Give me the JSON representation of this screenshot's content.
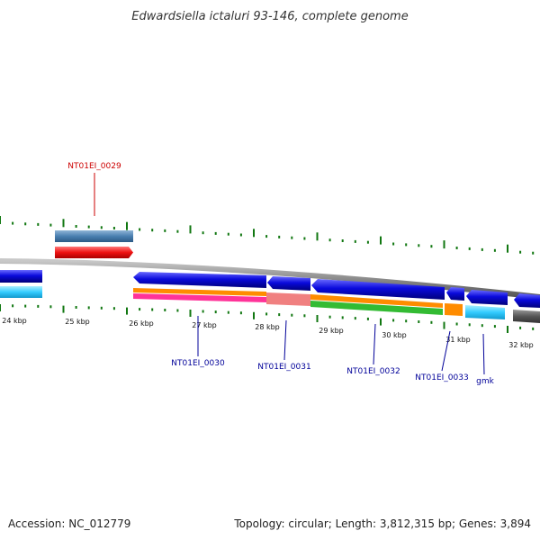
{
  "title": "Edwardsiella ictaluri 93-146, complete genome",
  "footer": {
    "accession": "Accession: NC_012779",
    "info": "Topology: circular; Length: 3,812,315 bp; Genes: 3,894"
  },
  "kbp_labels": [
    "24 kbp",
    "25 kbp",
    "26 kbp",
    "27 kbp",
    "28 kbp",
    "29 kbp",
    "30 kbp",
    "31 kbp",
    "32 kbp"
  ],
  "gene_labels": [
    {
      "id": "top",
      "text": "NT01EI_0029"
    },
    {
      "id": "a",
      "text": "NT01EI_0030"
    },
    {
      "id": "b",
      "text": "NT01EI_0031"
    },
    {
      "id": "c",
      "text": "NT01EI_0032"
    },
    {
      "id": "d",
      "text": "NT01EI_0033"
    },
    {
      "id": "e",
      "text": "gmk"
    }
  ],
  "colors": {
    "cds": "#0a0adc",
    "gene": "#33ccff",
    "red_feature": "#ee1111",
    "steel_feature": "#4a7fb0",
    "orange": "#ff8c00",
    "green": "#33bb33",
    "pink": "#ff3399",
    "salmon": "#f08080",
    "label_top": "#cc0000",
    "label": "#000099",
    "tick": "#117711",
    "backbone": "#8a8a8a"
  }
}
